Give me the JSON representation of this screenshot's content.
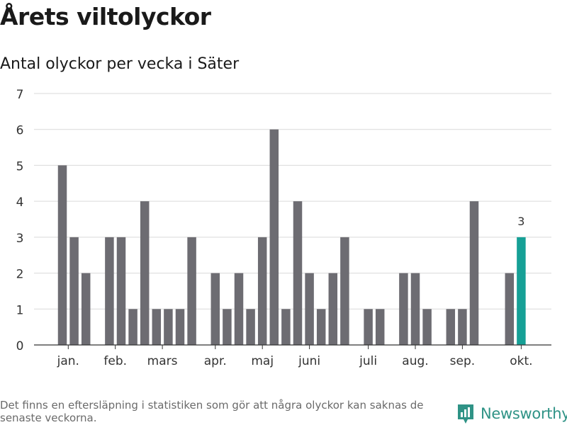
{
  "header": {
    "title": "Årets viltolyckor",
    "subtitle": "Antal olyckor per vecka i Säter"
  },
  "footer": {
    "note": "Det finns en eftersläpning i statistiken som gör att några olyckor kan saknas de senaste veckorna.",
    "brand": "Newsworthy"
  },
  "colors": {
    "bar": "#6d6c72",
    "highlight": "#16a096",
    "grid": "#d9d9d9",
    "axis": "#333333",
    "brand": "#2f9386"
  },
  "chart_data": {
    "type": "bar",
    "title": "Antal olyckor per vecka i Säter",
    "xlabel": "",
    "ylabel": "",
    "ylim": [
      0,
      7
    ],
    "yticks": [
      0,
      1,
      2,
      3,
      4,
      5,
      6,
      7
    ],
    "grid": true,
    "x": [
      1,
      2,
      3,
      4,
      5,
      6,
      7,
      8,
      9,
      10,
      11,
      12,
      13,
      14,
      15,
      16,
      17,
      18,
      19,
      20,
      21,
      22,
      23,
      24,
      25,
      26,
      27,
      28,
      29,
      30,
      31,
      32,
      33,
      34,
      35,
      36,
      37,
      38,
      39,
      40
    ],
    "values": [
      5,
      3,
      2,
      0,
      3,
      3,
      1,
      4,
      1,
      1,
      1,
      3,
      0,
      2,
      1,
      2,
      1,
      3,
      6,
      1,
      4,
      2,
      1,
      2,
      3,
      0,
      1,
      1,
      0,
      2,
      2,
      1,
      0,
      1,
      1,
      4,
      0,
      0,
      2,
      3
    ],
    "highlight_index": 39,
    "highlight_label": "3",
    "month_labels": [
      {
        "label": "jan.",
        "x": 1.5
      },
      {
        "label": "feb.",
        "x": 5.5
      },
      {
        "label": "mars",
        "x": 9.5
      },
      {
        "label": "apr.",
        "x": 14
      },
      {
        "label": "maj",
        "x": 18
      },
      {
        "label": "juni",
        "x": 22
      },
      {
        "label": "juli",
        "x": 27
      },
      {
        "label": "aug.",
        "x": 31
      },
      {
        "label": "sep.",
        "x": 35
      },
      {
        "label": "okt.",
        "x": 40
      }
    ]
  }
}
